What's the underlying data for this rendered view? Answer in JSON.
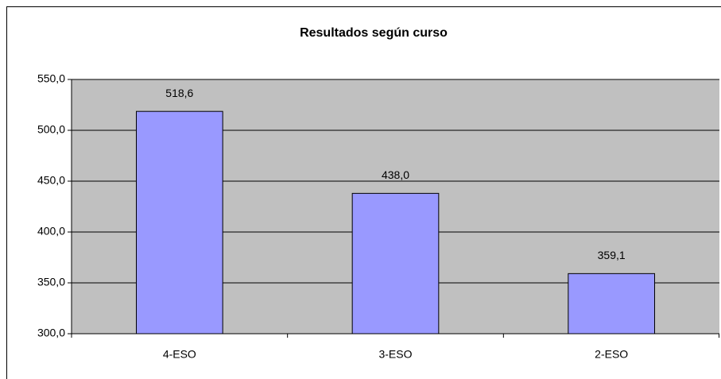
{
  "chart_data": {
    "type": "bar",
    "title": "Resultados según curso",
    "categories": [
      "4-ESO",
      "3-ESO",
      "2-ESO"
    ],
    "values": [
      518.6,
      438.0,
      359.1
    ],
    "value_labels": [
      "518,6",
      "438,0",
      "359,1"
    ],
    "color": "#9999ff",
    "ylim": [
      300,
      550
    ],
    "yticks": [
      {
        "value": 300,
        "label": "300,0"
      },
      {
        "value": 350,
        "label": "350,0"
      },
      {
        "value": 400,
        "label": "400,0"
      },
      {
        "value": 450,
        "label": "450,0"
      },
      {
        "value": 500,
        "label": "500,0"
      },
      {
        "value": 550,
        "label": "550,0"
      }
    ],
    "grid": true
  }
}
